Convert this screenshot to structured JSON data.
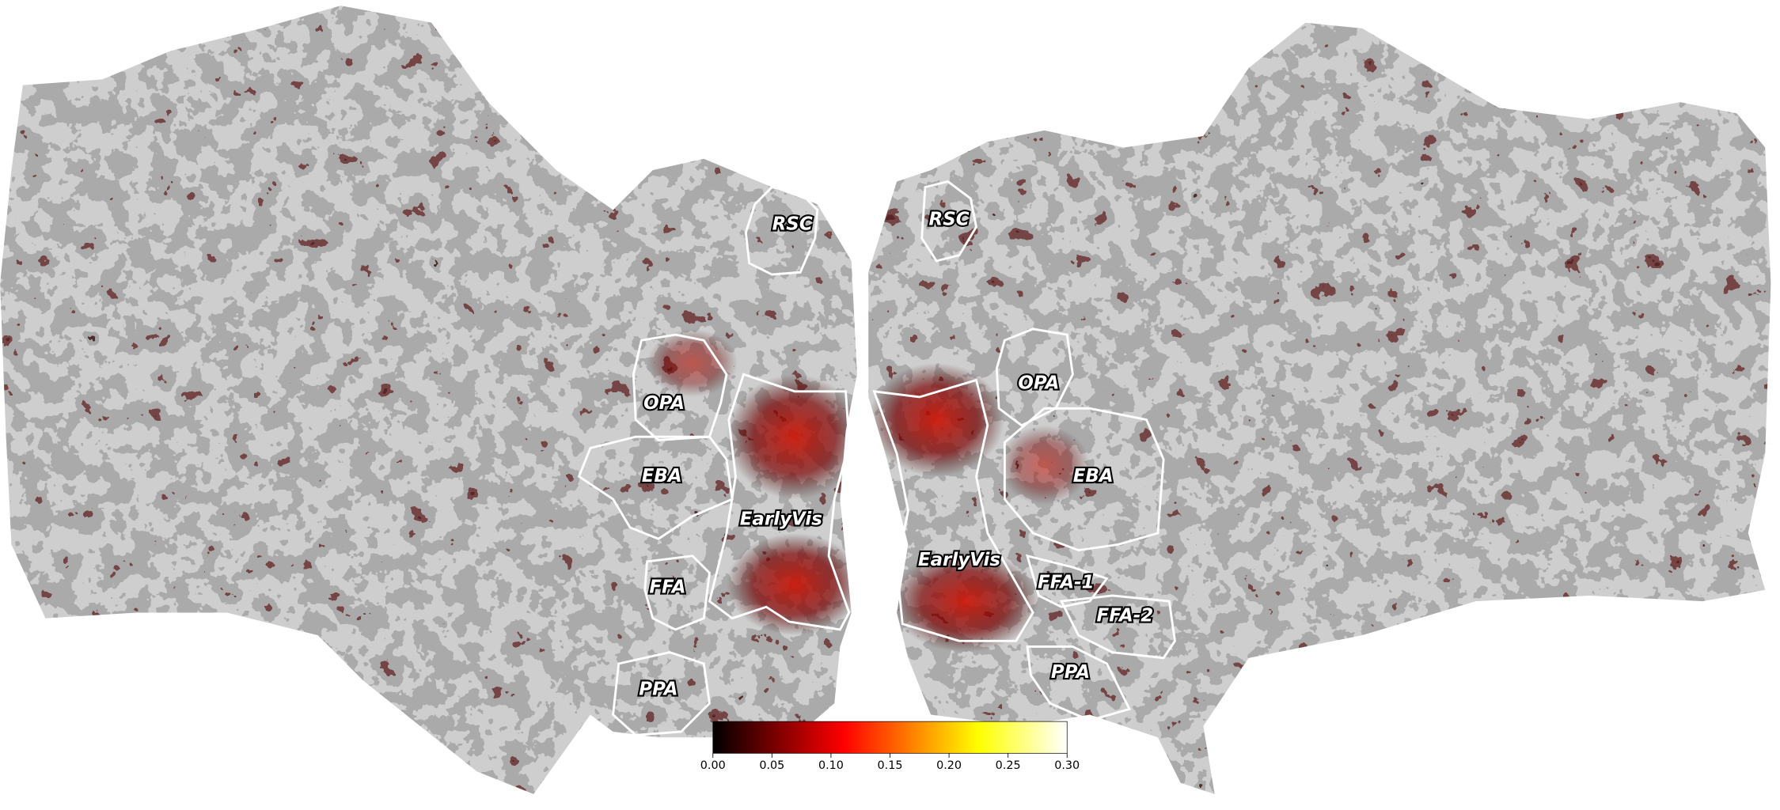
{
  "rois": {
    "left": [
      "RSC",
      "OPA",
      "EBA",
      "EarlyVis",
      "FFA",
      "PPA"
    ],
    "right": [
      "RSC",
      "OPA",
      "EBA",
      "EarlyVis",
      "FFA-1",
      "FFA-2",
      "PPA"
    ]
  },
  "colorbar": {
    "colormap": "hot",
    "lim": [
      0,
      0.3
    ],
    "ticks": [
      {
        "value": 0,
        "label": "0.00"
      },
      {
        "value": 0.05,
        "label": "0.05"
      },
      {
        "value": 0.1,
        "label": "0.10"
      },
      {
        "value": 0.15,
        "label": "0.15"
      },
      {
        "value": 0.2,
        "label": "0.20"
      },
      {
        "value": 0.25,
        "label": "0.25"
      },
      {
        "value": 0.3,
        "label": "0.30"
      }
    ]
  }
}
